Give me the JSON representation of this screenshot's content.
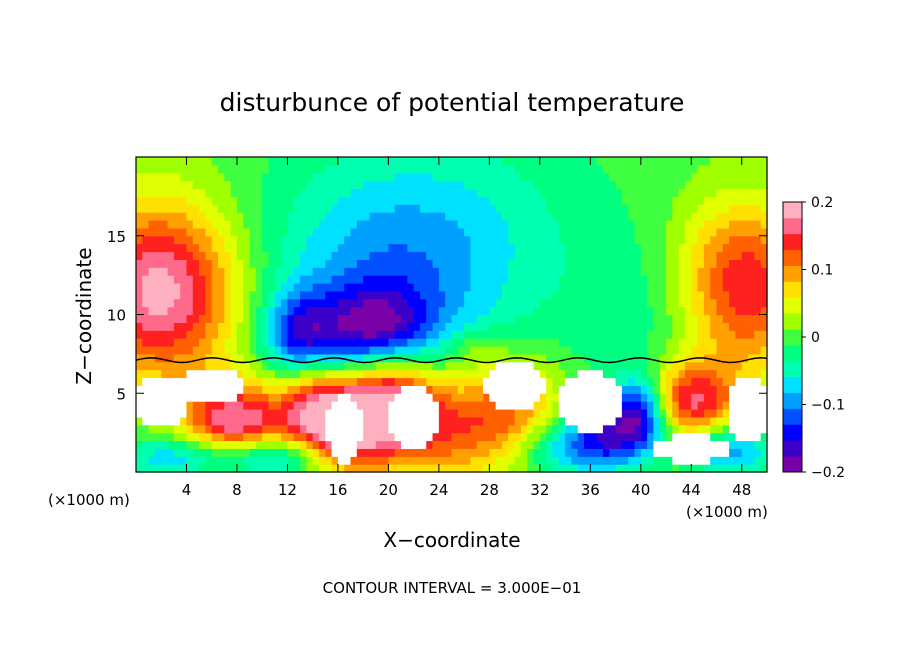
{
  "chart_data": {
    "type": "heatmap",
    "title": "disturbunce of potential temperature",
    "xlabel": "X−coordinate",
    "ylabel": "Z−coordinate",
    "x_unit_left": "(×1000 m)",
    "x_unit_right": "(×1000 m)",
    "footer": "CONTOUR INTERVAL = 3.000E−01",
    "xlim": [
      0,
      50
    ],
    "ylim": [
      0,
      20
    ],
    "x_ticks": [
      "4",
      "8",
      "12",
      "16",
      "20",
      "24",
      "28",
      "32",
      "36",
      "40",
      "44",
      "48"
    ],
    "x_tick_values": [
      4,
      8,
      12,
      16,
      20,
      24,
      28,
      32,
      36,
      40,
      44,
      48
    ],
    "y_ticks": [
      "5",
      "10",
      "15"
    ],
    "y_tick_values": [
      5,
      10,
      15
    ],
    "colorbar": {
      "ticks": [
        "0.2",
        "0.1",
        "0",
        "−0.1",
        "−0.2"
      ],
      "tick_values": [
        0.2,
        0.1,
        0,
        -0.1,
        -0.2
      ],
      "range": [
        -0.2,
        0.2
      ],
      "colors": [
        "#7a00a8",
        "#3c00c8",
        "#0000ff",
        "#0050ff",
        "#00a0ff",
        "#00e0ff",
        "#00ffb0",
        "#00ff80",
        "#40ff40",
        "#a0ff00",
        "#e0ff00",
        "#ffe000",
        "#ffa000",
        "#ff6000",
        "#ff2020",
        "#ff6a8a",
        "#ffb0c0"
      ]
    },
    "field_blobs": [
      {
        "x": 2,
        "z": 10.5,
        "sx": 4.5,
        "sz": 3.5,
        "v": 0.14
      },
      {
        "x": 48,
        "z": 10.5,
        "sx": 4,
        "sz": 3.5,
        "v": 0.12
      },
      {
        "x": 2,
        "z": 14,
        "sx": 4,
        "sz": 3.5,
        "v": 0.07
      },
      {
        "x": 48,
        "z": 14,
        "sx": 3.5,
        "sz": 3,
        "v": 0.06
      },
      {
        "x": 13,
        "z": 8.5,
        "sx": 2,
        "sz": 2,
        "v": -0.13
      },
      {
        "x": 19,
        "z": 8.8,
        "sx": 3,
        "sz": 2,
        "v": -0.15
      },
      {
        "x": 20,
        "z": 11,
        "sx": 7,
        "sz": 5,
        "v": -0.08
      },
      {
        "x": 24,
        "z": 16,
        "sx": 9,
        "sz": 5,
        "v": -0.05
      },
      {
        "x": 27,
        "z": 8,
        "sx": 1.5,
        "sz": 0.8,
        "v": 0.04
      },
      {
        "x": 42,
        "z": 9.5,
        "sx": 5,
        "sz": 4,
        "v": -0.04
      },
      {
        "x": 8,
        "z": 3,
        "sx": 3,
        "sz": 2,
        "v": 0.18
      },
      {
        "x": 14,
        "z": 4,
        "sx": 2,
        "sz": 2.5,
        "v": 0.16
      },
      {
        "x": 20,
        "z": 5,
        "sx": 2.5,
        "sz": 2.5,
        "v": 0.17
      },
      {
        "x": 17,
        "z": 3,
        "sx": 2,
        "sz": 2,
        "v": 0.14
      },
      {
        "x": 24,
        "z": 3,
        "sx": 4,
        "sz": 2.5,
        "v": 0.12
      },
      {
        "x": 30,
        "z": 4,
        "sx": 3,
        "sz": 2.5,
        "v": 0.09
      },
      {
        "x": 44,
        "z": 4.5,
        "sx": 2.5,
        "sz": 1.8,
        "v": 0.16
      },
      {
        "x": 38,
        "z": 2.5,
        "sx": 2.5,
        "sz": 1.5,
        "v": -0.12
      },
      {
        "x": 47,
        "z": 1.5,
        "sx": 2.5,
        "sz": 1.2,
        "v": -0.11
      },
      {
        "x": 4,
        "z": 1,
        "sx": 4,
        "sz": 1,
        "v": -0.1
      },
      {
        "x": 11,
        "z": 1,
        "sx": 3,
        "sz": 1,
        "v": -0.12
      },
      {
        "x": 34,
        "z": 1.5,
        "sx": 3,
        "sz": 1.3,
        "v": -0.09
      },
      {
        "x": 40,
        "z": 4,
        "sx": 1.5,
        "sz": 1.5,
        "v": -0.13
      }
    ],
    "white_regions": [
      {
        "x": 2,
        "z": 4.5,
        "rx": 2.2,
        "rz": 1.6
      },
      {
        "x": 6,
        "z": 5.5,
        "rx": 2.5,
        "rz": 1.2
      },
      {
        "x": 16.5,
        "z": 2.8,
        "rx": 1.4,
        "rz": 2.3
      },
      {
        "x": 22,
        "z": 3.5,
        "rx": 2,
        "rz": 2.2
      },
      {
        "x": 30,
        "z": 5.5,
        "rx": 2.5,
        "rz": 1.5
      },
      {
        "x": 36,
        "z": 4.5,
        "rx": 2.5,
        "rz": 2
      },
      {
        "x": 48.5,
        "z": 4,
        "rx": 1.6,
        "rz": 2.2
      },
      {
        "x": 44,
        "z": 1.5,
        "rx": 3,
        "rz": 0.9
      }
    ]
  }
}
